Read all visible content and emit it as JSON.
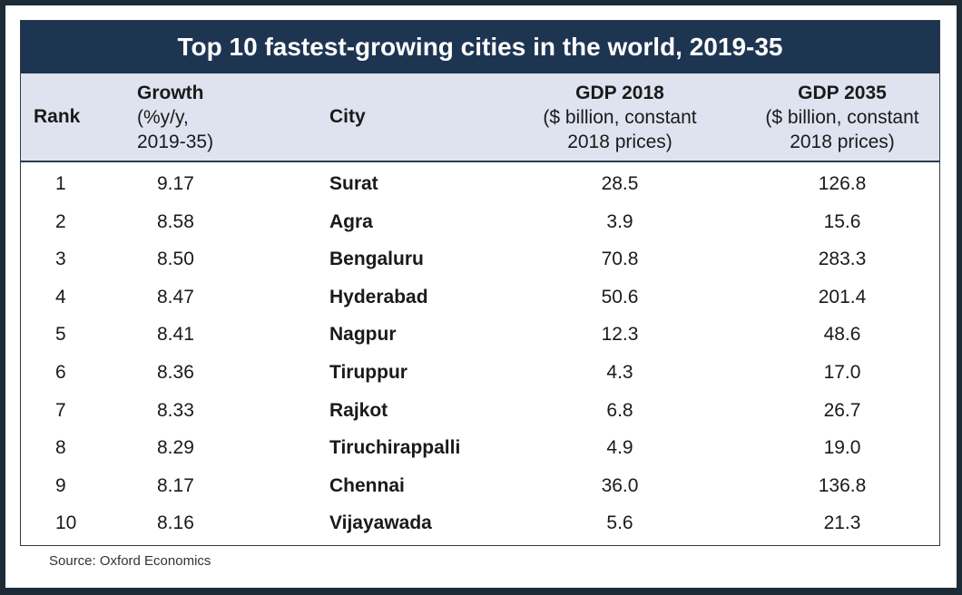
{
  "title": "Top 10 fastest-growing cities in the world, 2019-35",
  "headers": {
    "rank": "Rank",
    "growth_line1": "Growth",
    "growth_line2": "(%y/y,",
    "growth_line3": "2019-35)",
    "city": "City",
    "gdp2018_line1": "GDP 2018",
    "gdp2018_line2": "($ billion, constant",
    "gdp2018_line3": "2018 prices)",
    "gdp2035_line1": "GDP 2035",
    "gdp2035_line2": "($ billion, constant",
    "gdp2035_line3": "2018 prices)"
  },
  "rows": [
    {
      "rank": "1",
      "growth": "9.17",
      "city": "Surat",
      "gdp2018": "28.5",
      "gdp2035": "126.8"
    },
    {
      "rank": "2",
      "growth": "8.58",
      "city": "Agra",
      "gdp2018": "3.9",
      "gdp2035": "15.6"
    },
    {
      "rank": "3",
      "growth": "8.50",
      "city": "Bengaluru",
      "gdp2018": "70.8",
      "gdp2035": "283.3"
    },
    {
      "rank": "4",
      "growth": "8.47",
      "city": "Hyderabad",
      "gdp2018": "50.6",
      "gdp2035": "201.4"
    },
    {
      "rank": "5",
      "growth": "8.41",
      "city": "Nagpur",
      "gdp2018": "12.3",
      "gdp2035": "48.6"
    },
    {
      "rank": "6",
      "growth": "8.36",
      "city": "Tiruppur",
      "gdp2018": "4.3",
      "gdp2035": "17.0"
    },
    {
      "rank": "7",
      "growth": "8.33",
      "city": "Rajkot",
      "gdp2018": "6.8",
      "gdp2035": "26.7"
    },
    {
      "rank": "8",
      "growth": "8.29",
      "city": "Tiruchirappalli",
      "gdp2018": "4.9",
      "gdp2035": "19.0"
    },
    {
      "rank": "9",
      "growth": "8.17",
      "city": "Chennai",
      "gdp2018": "36.0",
      "gdp2035": "136.8"
    },
    {
      "rank": "10",
      "growth": "8.16",
      "city": "Vijayawada",
      "gdp2018": "5.6",
      "gdp2035": "21.3"
    }
  ],
  "source": "Source: Oxford Economics",
  "colors": {
    "title_bg": "#1e3551",
    "header_bg": "#dfe3f0",
    "frame_bg": "#1c2b36"
  }
}
